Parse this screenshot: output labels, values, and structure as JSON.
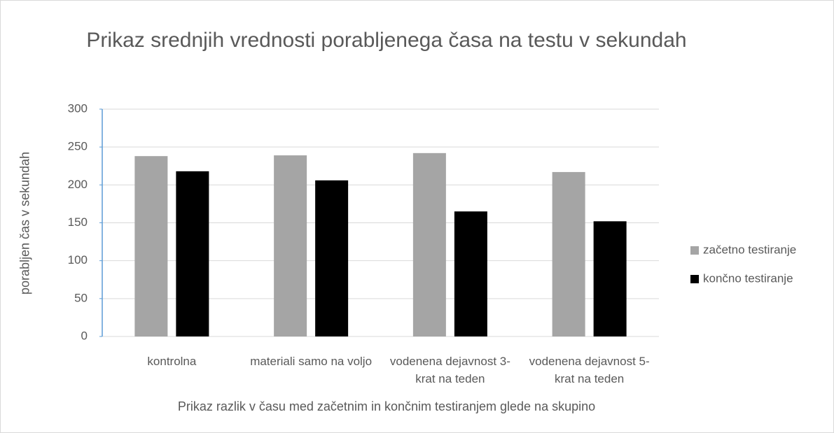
{
  "chart_data": {
    "type": "bar",
    "title": "Prikaz srednjih vrednosti porabljenega časa na testu v sekundah",
    "x_label": "Prikaz razlik v času med začetnim in končnim testiranjem glede na skupino",
    "y_label": "porabljen čas v sekundah",
    "categories": [
      "kontrolna",
      "materiali samo na voljo",
      "vodenena dejavnost 3-krat na teden",
      "vodenena dejavnost 5-krat na teden"
    ],
    "series": [
      {
        "name": "začetno testiranje",
        "color": "#a5a5a5",
        "values": [
          238,
          239,
          242,
          217
        ]
      },
      {
        "name": "končno testiranje",
        "color": "#000000",
        "values": [
          218,
          206,
          165,
          152
        ]
      }
    ],
    "ylim": [
      0,
      300
    ],
    "yticks": [
      0,
      50,
      100,
      150,
      200,
      250,
      300
    ],
    "grid": true,
    "legend": "right"
  }
}
